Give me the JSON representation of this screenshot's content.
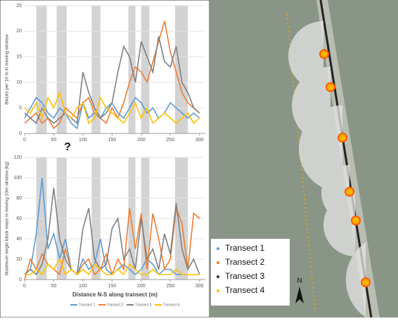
{
  "chart_data": [
    {
      "type": "line",
      "ylabel": "Blocks per 10 m in moving window",
      "x": [
        0,
        10,
        20,
        30,
        40,
        50,
        60,
        70,
        80,
        90,
        100,
        110,
        120,
        130,
        140,
        150,
        160,
        170,
        180,
        190,
        200,
        210,
        220,
        230,
        240,
        250,
        260,
        270,
        280,
        290,
        300
      ],
      "xlim": [
        0,
        310
      ],
      "xticks": [
        0,
        50,
        100,
        150,
        200,
        250,
        300
      ],
      "ylim": [
        0,
        25
      ],
      "yticks": [
        0,
        5,
        10,
        15,
        20,
        25
      ],
      "grid": true,
      "shaded_regions": [
        [
          20,
          38
        ],
        [
          55,
          72
        ],
        [
          115,
          130
        ],
        [
          178,
          190
        ],
        [
          200,
          214
        ],
        [
          258,
          280
        ]
      ],
      "annotation": "?",
      "series": [
        {
          "name": "Transect 1",
          "color": "#5b9bd5",
          "values": [
            3,
            5,
            7,
            6,
            4,
            3,
            5,
            4,
            2,
            1,
            6,
            3,
            4,
            3,
            5,
            6,
            4,
            3,
            5,
            7,
            6,
            4,
            5,
            3,
            4,
            6,
            5,
            4,
            3,
            4,
            3
          ]
        },
        {
          "name": "Transect 2",
          "color": "#ed7d31",
          "values": [
            2,
            3,
            4,
            2,
            3,
            1,
            2,
            5,
            4,
            3,
            6,
            7,
            4,
            3,
            2,
            5,
            3,
            6,
            10,
            13,
            12,
            10,
            14,
            18,
            22,
            16,
            12,
            8,
            6,
            5,
            4
          ]
        },
        {
          "name": "Transect 3",
          "color": "#7f7f7f",
          "values": [
            4,
            3,
            2,
            5,
            3,
            2,
            3,
            4,
            3,
            2,
            12,
            8,
            5,
            3,
            4,
            6,
            12,
            17,
            15,
            10,
            18,
            15,
            12,
            19,
            14,
            13,
            17,
            10,
            8,
            5,
            4
          ]
        },
        {
          "name": "Transect 4",
          "color": "#ffc000",
          "values": [
            5,
            4,
            6,
            3,
            7,
            5,
            8,
            4,
            3,
            5,
            6,
            2,
            3,
            7,
            5,
            4,
            3,
            2,
            4,
            6,
            3,
            5,
            2,
            3,
            4,
            3,
            2,
            3,
            4,
            2,
            3
          ]
        }
      ]
    },
    {
      "type": "line",
      "ylabel": "Maximum single block mass in moving 10m window (kg)",
      "xlabel": "Distance N-S along transect (m)",
      "x": [
        0,
        10,
        20,
        30,
        40,
        50,
        60,
        70,
        80,
        90,
        100,
        110,
        120,
        130,
        140,
        150,
        160,
        170,
        180,
        190,
        200,
        210,
        220,
        230,
        240,
        250,
        260,
        270,
        280,
        290,
        300
      ],
      "xlim": [
        0,
        310
      ],
      "xticks": [
        0,
        50,
        100,
        150,
        200,
        250,
        300
      ],
      "ylim": [
        0,
        120
      ],
      "yticks": [
        0,
        20,
        40,
        60,
        80,
        100,
        120
      ],
      "grid": true,
      "shaded_regions": [
        [
          20,
          38
        ],
        [
          55,
          72
        ],
        [
          115,
          130
        ],
        [
          178,
          190
        ],
        [
          200,
          214
        ],
        [
          258,
          280
        ]
      ],
      "series": [
        {
          "name": "Transect 1",
          "color": "#5b9bd5",
          "values": [
            5,
            10,
            45,
            100,
            30,
            45,
            20,
            40,
            10,
            5,
            20,
            10,
            15,
            40,
            10,
            5,
            10,
            15,
            10,
            5,
            10,
            20,
            15,
            5,
            10,
            10,
            5,
            5,
            5,
            5,
            5
          ]
        },
        {
          "name": "Transect 2",
          "color": "#ed7d31",
          "values": [
            0,
            20,
            10,
            25,
            15,
            10,
            5,
            30,
            10,
            5,
            15,
            20,
            5,
            10,
            25,
            5,
            20,
            10,
            70,
            30,
            65,
            10,
            65,
            40,
            10,
            20,
            70,
            55,
            10,
            65,
            60
          ]
        },
        {
          "name": "Transect 3",
          "color": "#7f7f7f",
          "values": [
            5,
            10,
            5,
            15,
            40,
            90,
            40,
            20,
            10,
            5,
            50,
            70,
            20,
            10,
            15,
            50,
            60,
            20,
            30,
            10,
            60,
            20,
            30,
            10,
            45,
            25,
            75,
            30,
            10,
            20,
            5
          ]
        },
        {
          "name": "Transect 4",
          "color": "#ffc000",
          "values": [
            5,
            5,
            10,
            5,
            15,
            10,
            20,
            5,
            10,
            5,
            10,
            5,
            15,
            10,
            5,
            5,
            10,
            5,
            15,
            10,
            5,
            5,
            10,
            5,
            5,
            5,
            10,
            5,
            5,
            5,
            5
          ]
        }
      ]
    }
  ],
  "map": {
    "north": "N",
    "legend": [
      {
        "name": "Transect 1",
        "color": "#5b9bd5"
      },
      {
        "name": "Transect 2",
        "color": "#ed7d31"
      },
      {
        "name": "Transect 3",
        "color": "#333333"
      },
      {
        "name": "Transect 4",
        "color": "#ffc000"
      }
    ]
  }
}
